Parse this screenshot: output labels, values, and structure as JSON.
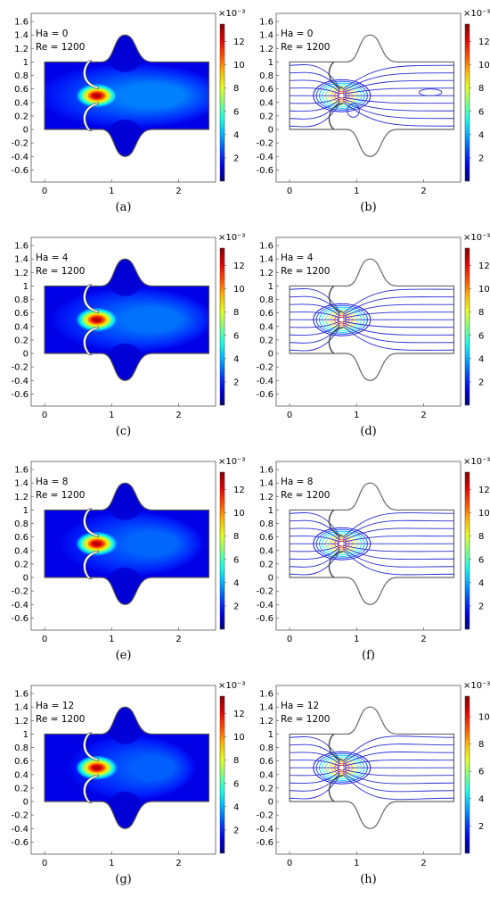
{
  "chart_data": [
    {
      "id": "a",
      "type": "heatmap",
      "variant": "velocity_contour",
      "caption": "(a)",
      "annotation": [
        "Ha = 0",
        "Re = 1200"
      ],
      "x_ticks": [
        "0",
        "1",
        "2"
      ],
      "y_ticks": [
        "1.6",
        "1.4",
        "1.2",
        "1",
        "0.8",
        "0.6",
        "0.4",
        "0.2",
        "0",
        "-0.2",
        "-0.4",
        "-0.6"
      ],
      "xlim": [
        -0.2,
        2.55
      ],
      "ylim": [
        -0.78,
        1.72
      ],
      "colorbar": {
        "exponent_label": "×10⁻³",
        "ticks": [
          "12",
          "10",
          "8",
          "6",
          "4",
          "2"
        ],
        "tick_values": [
          12,
          10,
          8,
          6,
          4,
          2
        ],
        "range": [
          0,
          13.5
        ]
      },
      "jet_center": [
        0.8,
        0.5
      ],
      "value_max": 13.5,
      "ha": 0
    },
    {
      "id": "b",
      "type": "contour",
      "variant": "streamlines",
      "caption": "(b)",
      "annotation": [
        "Ha = 0",
        "Re = 1200"
      ],
      "x_ticks": [
        "0",
        "1",
        "2"
      ],
      "y_ticks": [
        "1.6",
        "1.4",
        "1.2",
        "1",
        "0.8",
        "0.6",
        "0.4",
        "0.2",
        "0",
        "-0.2",
        "-0.4",
        "-0.6"
      ],
      "xlim": [
        -0.2,
        2.55
      ],
      "ylim": [
        -0.78,
        1.72
      ],
      "colorbar": {
        "exponent_label": "×10⁻³",
        "ticks": [
          "12",
          "10",
          "8",
          "6",
          "4",
          "2"
        ],
        "tick_values": [
          12,
          10,
          8,
          6,
          4,
          2
        ],
        "range": [
          0,
          13.5
        ]
      },
      "jet_center": [
        0.8,
        0.5
      ],
      "value_max": 13.5,
      "ha": 0
    },
    {
      "id": "c",
      "type": "heatmap",
      "variant": "velocity_contour",
      "caption": "(c)",
      "annotation": [
        "Ha = 4",
        "Re = 1200"
      ],
      "x_ticks": [
        "0",
        "1",
        "2"
      ],
      "y_ticks": [
        "1.6",
        "1.4",
        "1.2",
        "1",
        "0.8",
        "0.6",
        "0.4",
        "0.2",
        "0",
        "-0.2",
        "-0.4",
        "-0.6"
      ],
      "xlim": [
        -0.2,
        2.55
      ],
      "ylim": [
        -0.78,
        1.72
      ],
      "colorbar": {
        "exponent_label": "×10⁻³",
        "ticks": [
          "12",
          "10",
          "8",
          "6",
          "4",
          "2"
        ],
        "tick_values": [
          12,
          10,
          8,
          6,
          4,
          2
        ],
        "range": [
          0,
          13.5
        ]
      },
      "jet_center": [
        0.8,
        0.5
      ],
      "value_max": 13.5,
      "ha": 4
    },
    {
      "id": "d",
      "type": "contour",
      "variant": "streamlines",
      "caption": "(d)",
      "annotation": [
        "Ha = 4",
        "Re = 1200"
      ],
      "x_ticks": [
        "0",
        "1",
        "2"
      ],
      "y_ticks": [
        "1.6",
        "1.4",
        "1.2",
        "1",
        "0.8",
        "0.6",
        "0.4",
        "0.2",
        "0",
        "-0.2",
        "-0.4",
        "-0.6"
      ],
      "xlim": [
        -0.2,
        2.55
      ],
      "ylim": [
        -0.78,
        1.72
      ],
      "colorbar": {
        "exponent_label": "×10⁻³",
        "ticks": [
          "12",
          "10",
          "8",
          "6",
          "4",
          "2"
        ],
        "tick_values": [
          12,
          10,
          8,
          6,
          4,
          2
        ],
        "range": [
          0,
          13.5
        ]
      },
      "jet_center": [
        0.8,
        0.5
      ],
      "value_max": 13.5,
      "ha": 4
    },
    {
      "id": "e",
      "type": "heatmap",
      "variant": "velocity_contour",
      "caption": "(e)",
      "annotation": [
        "Ha = 8",
        "Re = 1200"
      ],
      "x_ticks": [
        "0",
        "1",
        "2"
      ],
      "y_ticks": [
        "1.6",
        "1.4",
        "1.2",
        "1",
        "0.8",
        "0.6",
        "0.4",
        "0.2",
        "0",
        "-0.2",
        "-0.4",
        "-0.6"
      ],
      "xlim": [
        -0.2,
        2.55
      ],
      "ylim": [
        -0.78,
        1.72
      ],
      "colorbar": {
        "exponent_label": "×10⁻³",
        "ticks": [
          "12",
          "10",
          "8",
          "6",
          "4",
          "2"
        ],
        "tick_values": [
          12,
          10,
          8,
          6,
          4,
          2
        ],
        "range": [
          0,
          13.5
        ]
      },
      "jet_center": [
        0.8,
        0.5
      ],
      "value_max": 13.5,
      "ha": 8
    },
    {
      "id": "f",
      "type": "contour",
      "variant": "streamlines",
      "caption": "(f)",
      "annotation": [
        "Ha = 8",
        "Re = 1200"
      ],
      "x_ticks": [
        "0",
        "1",
        "2"
      ],
      "y_ticks": [
        "1.6",
        "1.4",
        "1.2",
        "1",
        "0.8",
        "0.6",
        "0.4",
        "0.2",
        "0",
        "-0.2",
        "-0.4",
        "-0.6"
      ],
      "xlim": [
        -0.2,
        2.55
      ],
      "ylim": [
        -0.78,
        1.72
      ],
      "colorbar": {
        "exponent_label": "×10⁻³",
        "ticks": [
          "12",
          "10",
          "8",
          "6",
          "4",
          "2"
        ],
        "tick_values": [
          12,
          10,
          8,
          6,
          4,
          2
        ],
        "range": [
          0,
          13.5
        ]
      },
      "jet_center": [
        0.8,
        0.5
      ],
      "value_max": 13.5,
      "ha": 8
    },
    {
      "id": "g",
      "type": "heatmap",
      "variant": "velocity_contour",
      "caption": "(g)",
      "annotation": [
        "Ha = 12",
        "Re = 1200"
      ],
      "x_ticks": [
        "0",
        "1",
        "2"
      ],
      "y_ticks": [
        "1.6",
        "1.4",
        "1.2",
        "1",
        "0.8",
        "0.6",
        "0.4",
        "0.2",
        "0",
        "-0.2",
        "-0.4",
        "-0.6"
      ],
      "xlim": [
        -0.2,
        2.55
      ],
      "ylim": [
        -0.78,
        1.72
      ],
      "colorbar": {
        "exponent_label": "×10⁻³",
        "ticks": [
          "12",
          "10",
          "8",
          "6",
          "4",
          "2"
        ],
        "tick_values": [
          12,
          10,
          8,
          6,
          4,
          2
        ],
        "range": [
          0,
          13.5
        ]
      },
      "jet_center": [
        0.8,
        0.5
      ],
      "value_max": 13.5,
      "ha": 12
    },
    {
      "id": "h",
      "type": "contour",
      "variant": "streamlines",
      "caption": "(h)",
      "annotation": [
        "Ha = 12",
        "Re = 1200"
      ],
      "x_ticks": [
        "0",
        "1",
        "2"
      ],
      "y_ticks": [
        "1.6",
        "1.4",
        "1.2",
        "1",
        "0.8",
        "0.6",
        "0.4",
        "0.2",
        "0",
        "-0.2",
        "-0.4",
        "-0.6"
      ],
      "xlim": [
        -0.2,
        2.55
      ],
      "ylim": [
        -0.78,
        1.72
      ],
      "colorbar": {
        "exponent_label": "×10⁻³",
        "ticks": [
          "10",
          "8",
          "6",
          "4",
          "2"
        ],
        "tick_values": [
          10,
          8,
          6,
          4,
          2
        ],
        "range": [
          0,
          11.5
        ]
      },
      "jet_center": [
        0.8,
        0.5
      ],
      "value_max": 11.5,
      "ha": 12
    }
  ]
}
